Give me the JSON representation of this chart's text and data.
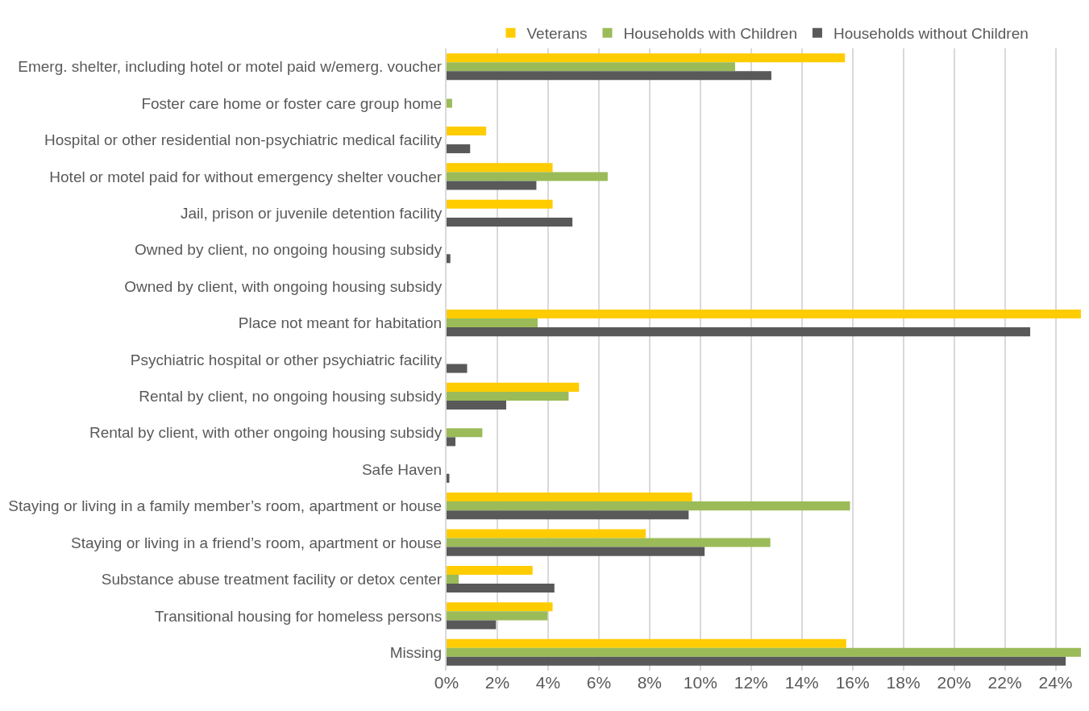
{
  "chart_data": {
    "type": "bar",
    "orientation": "horizontal",
    "categories": [
      "Emerg. shelter, including hotel or motel paid w/emerg. voucher",
      "Foster care home or foster care group home",
      "Hospital or other residential non-psychiatric medical facility",
      "Hotel or motel paid for without emergency shelter voucher",
      "Jail, prison or juvenile detention facility",
      "Owned by client, no ongoing housing subsidy",
      "Owned by client, with ongoing housing subsidy",
      "Place not meant for habitation",
      "Psychiatric hospital or other psychiatric facility",
      "Rental by client, no ongoing housing subsidy",
      "Rental by client, with other ongoing housing subsidy",
      "Safe Haven",
      "Staying or living in a family member’s room, apartment or house",
      "Staying or living in a friend’s room, apartment or house",
      "Substance abuse treatment facility or detox center",
      "Transitional housing for homeless persons",
      "Missing"
    ],
    "series": [
      {
        "name": "Veterans",
        "color": "#ffcc00",
        "values": [
          15.7,
          0,
          1.56,
          4.18,
          4.18,
          0,
          0,
          25,
          0,
          5.22,
          0,
          0,
          9.68,
          7.85,
          3.39,
          4.18,
          15.75
        ]
      },
      {
        "name": "Households with Children",
        "color": "#9bbb59",
        "values": [
          11.37,
          0.22,
          0,
          6.35,
          0,
          0,
          0,
          3.59,
          0,
          4.81,
          1.41,
          0,
          15.9,
          12.76,
          0.48,
          3.98,
          25
        ]
      },
      {
        "name": "Households without Children",
        "color": "#595959",
        "values": [
          12.8,
          0,
          0.93,
          3.54,
          4.96,
          0.15,
          0,
          23.0,
          0.81,
          2.35,
          0.35,
          0.11,
          9.54,
          10.17,
          4.25,
          1.95,
          24.4
        ]
      }
    ],
    "xlim": [
      0,
      25
    ],
    "xticks": [
      {
        "value": 0,
        "label": "0%"
      },
      {
        "value": 2,
        "label": "2%"
      },
      {
        "value": 4,
        "label": "4%"
      },
      {
        "value": 6,
        "label": "6%"
      },
      {
        "value": 8,
        "label": "8%"
      },
      {
        "value": 10,
        "label": "10%"
      },
      {
        "value": 12,
        "label": "12%"
      },
      {
        "value": 14,
        "label": "14%"
      },
      {
        "value": 16,
        "label": "16%"
      },
      {
        "value": 18,
        "label": "18%"
      },
      {
        "value": 20,
        "label": "20%"
      },
      {
        "value": 22,
        "label": "22%"
      },
      {
        "value": 24,
        "label": "24%"
      }
    ],
    "grid": "x",
    "legend": "top"
  }
}
